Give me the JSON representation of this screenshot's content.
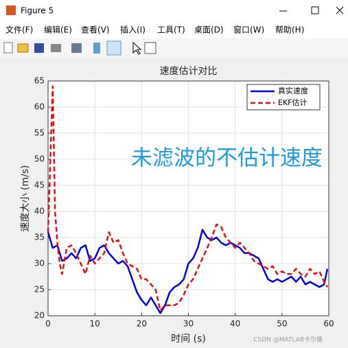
{
  "window": {
    "title": "Figure 5",
    "menu": [
      "文件(F)",
      "编辑(E)",
      "查看(V)",
      "插入(I)",
      "工具(T)",
      "桌面(D)",
      "窗口(W)",
      "帮助(H)"
    ],
    "watermark": "CSDN @MATLAB卡尔曼"
  },
  "chart_data": {
    "type": "line",
    "title": "速度估计对比",
    "xlabel": "时间 (s)",
    "ylabel": "速度大小 (m/s)",
    "annotation": "未滤波的不估计速度",
    "annotation_color": "#1e9be0",
    "xlim": [
      0,
      60
    ],
    "ylim": [
      20,
      65
    ],
    "xticks": [
      0,
      10,
      20,
      30,
      40,
      50,
      60
    ],
    "yticks": [
      20,
      25,
      30,
      35,
      40,
      45,
      50,
      55,
      60,
      65
    ],
    "grid": true,
    "legend": "top-right",
    "series": [
      {
        "name": "真实速度",
        "color": "#0000dd",
        "dash": "solid",
        "x": [
          0,
          1,
          2,
          3,
          4,
          5,
          6,
          7,
          8,
          9,
          10,
          11,
          12,
          13,
          14,
          15,
          16,
          17,
          18,
          19,
          20,
          21,
          22,
          23,
          24,
          25,
          26,
          27,
          28,
          29,
          30,
          31,
          32,
          33,
          34,
          35,
          36,
          37,
          38,
          39,
          40,
          41,
          42,
          43,
          44,
          45,
          46,
          47,
          48,
          49,
          50,
          51,
          52,
          53,
          54,
          55,
          56,
          57,
          58,
          59,
          59.7
        ],
        "values": [
          36,
          33,
          33.5,
          30.5,
          31,
          32,
          31,
          33,
          33.5,
          30.5,
          31,
          33,
          33.5,
          32,
          31,
          30,
          30.5,
          29.5,
          27,
          24.5,
          23,
          22,
          23.5,
          22,
          20.5,
          22,
          24.5,
          25.5,
          26,
          27,
          30,
          31,
          33,
          36.5,
          35,
          34.5,
          35,
          34,
          33.5,
          34,
          33.5,
          33,
          32,
          32,
          31.5,
          31,
          29,
          27,
          26.5,
          27,
          26.5,
          27,
          27.5,
          26.5,
          27.5,
          26,
          26.5,
          26,
          25.5,
          26,
          29
        ]
      },
      {
        "name": "EKF估计",
        "color": "#e01010",
        "dash": "dashed",
        "x": [
          0,
          0.5,
          1,
          1.5,
          2,
          2.5,
          3,
          4,
          5,
          6,
          7,
          8,
          9,
          10,
          11,
          12,
          13,
          14,
          15,
          16,
          17,
          18,
          19,
          20,
          21,
          22,
          23,
          24,
          25,
          26,
          27,
          28,
          29,
          30,
          31,
          32,
          33,
          34,
          35,
          36,
          37,
          38,
          39,
          40,
          41,
          42,
          43,
          44,
          45,
          46,
          47,
          48,
          49,
          50,
          51,
          52,
          53,
          54,
          55,
          56,
          57,
          58,
          59,
          59.7
        ],
        "values": [
          36,
          50,
          64,
          40,
          34,
          30,
          28,
          33,
          33.5,
          32,
          30,
          28,
          31.5,
          30,
          31,
          32,
          36,
          34,
          34.5,
          32,
          30,
          29.5,
          29,
          27,
          27,
          26,
          25,
          21,
          22,
          22,
          22,
          22.5,
          24,
          26,
          27,
          29,
          31,
          33,
          35,
          37.5,
          37,
          35,
          34,
          33,
          34,
          33,
          32,
          30.5,
          30,
          29.5,
          29,
          29.5,
          28,
          28.5,
          28,
          28,
          29,
          28,
          27.5,
          29,
          28,
          28.5,
          26.5,
          25.5
        ]
      }
    ]
  }
}
